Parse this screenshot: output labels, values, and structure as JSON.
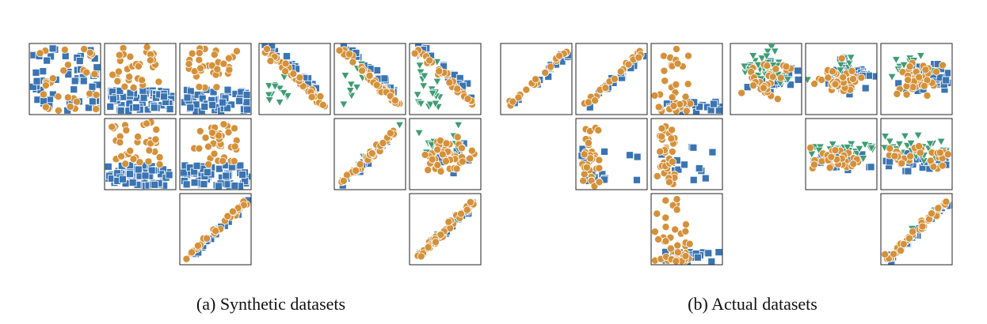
{
  "captions": {
    "a": "(a) Synthetic datasets",
    "b": "(b) Actual datasets"
  },
  "colors": {
    "circle": "#D4913A",
    "square": "#3A74B2",
    "triangle": "#3E9C73",
    "frame": "#222222"
  },
  "marker_shapes": {
    "s0": "circle",
    "s1": "square",
    "s2": "triangle"
  },
  "chart_data": [
    {
      "type": "scatter",
      "group": "a1",
      "row": 0,
      "col": 0,
      "trend": "mixed",
      "n": [
        30,
        55,
        0
      ]
    },
    {
      "type": "scatter",
      "group": "a1",
      "row": 0,
      "col": 1,
      "trend": "cloud-top",
      "n": [
        35,
        60,
        0
      ]
    },
    {
      "type": "scatter",
      "group": "a1",
      "row": 0,
      "col": 2,
      "trend": "cloud-top",
      "n": [
        35,
        60,
        0
      ]
    },
    {
      "type": "scatter",
      "group": "a1",
      "row": 1,
      "col": 1,
      "trend": "cloud-top",
      "n": [
        35,
        70,
        0
      ]
    },
    {
      "type": "scatter",
      "group": "a1",
      "row": 1,
      "col": 2,
      "trend": "cloud-top",
      "n": [
        35,
        70,
        0
      ]
    },
    {
      "type": "scatter",
      "group": "a1",
      "row": 2,
      "col": 2,
      "trend": "increasing",
      "n": [
        30,
        25,
        0
      ]
    },
    {
      "type": "scatter",
      "group": "a2",
      "row": 0,
      "col": 0,
      "trend": "decreasing",
      "n": [
        45,
        25,
        12
      ]
    },
    {
      "type": "scatter",
      "group": "a2",
      "row": 0,
      "col": 1,
      "trend": "decreasing",
      "n": [
        45,
        25,
        12
      ]
    },
    {
      "type": "scatter",
      "group": "a2",
      "row": 0,
      "col": 2,
      "trend": "decreasing",
      "n": [
        40,
        20,
        20
      ]
    },
    {
      "type": "scatter",
      "group": "a2",
      "row": 1,
      "col": 1,
      "trend": "increasing",
      "n": [
        40,
        20,
        8
      ]
    },
    {
      "type": "scatter",
      "group": "a2",
      "row": 1,
      "col": 2,
      "trend": "cloud",
      "n": [
        45,
        20,
        20
      ]
    },
    {
      "type": "scatter",
      "group": "a2",
      "row": 2,
      "col": 2,
      "trend": "increasing",
      "n": [
        45,
        15,
        15
      ]
    },
    {
      "type": "scatter",
      "group": "b1",
      "row": 0,
      "col": 0,
      "trend": "increasing",
      "n": [
        25,
        20,
        0
      ]
    },
    {
      "type": "scatter",
      "group": "b1",
      "row": 0,
      "col": 1,
      "trend": "increasing",
      "n": [
        25,
        25,
        0
      ]
    },
    {
      "type": "scatter",
      "group": "b1",
      "row": 0,
      "col": 2,
      "trend": "bottom",
      "n": [
        35,
        25,
        0
      ]
    },
    {
      "type": "scatter",
      "group": "b1",
      "row": 1,
      "col": 1,
      "trend": "left",
      "n": [
        35,
        15,
        0
      ]
    },
    {
      "type": "scatter",
      "group": "b1",
      "row": 1,
      "col": 2,
      "trend": "left",
      "n": [
        35,
        15,
        0
      ]
    },
    {
      "type": "scatter",
      "group": "b1",
      "row": 2,
      "col": 2,
      "trend": "bottom",
      "n": [
        45,
        20,
        0
      ]
    },
    {
      "type": "scatter",
      "group": "b2",
      "row": 0,
      "col": 0,
      "trend": "cloud",
      "n": [
        35,
        25,
        40
      ]
    },
    {
      "type": "scatter",
      "group": "b2",
      "row": 0,
      "col": 1,
      "trend": "cloud",
      "n": [
        45,
        40,
        10
      ]
    },
    {
      "type": "scatter",
      "group": "b2",
      "row": 0,
      "col": 2,
      "trend": "cloud",
      "n": [
        45,
        45,
        15
      ]
    },
    {
      "type": "scatter",
      "group": "b2",
      "row": 1,
      "col": 1,
      "trend": "band",
      "n": [
        30,
        25,
        30
      ]
    },
    {
      "type": "scatter",
      "group": "b2",
      "row": 1,
      "col": 2,
      "trend": "band",
      "n": [
        30,
        30,
        35
      ]
    },
    {
      "type": "scatter",
      "group": "b2",
      "row": 2,
      "col": 2,
      "trend": "increasing",
      "n": [
        45,
        35,
        10
      ]
    }
  ]
}
